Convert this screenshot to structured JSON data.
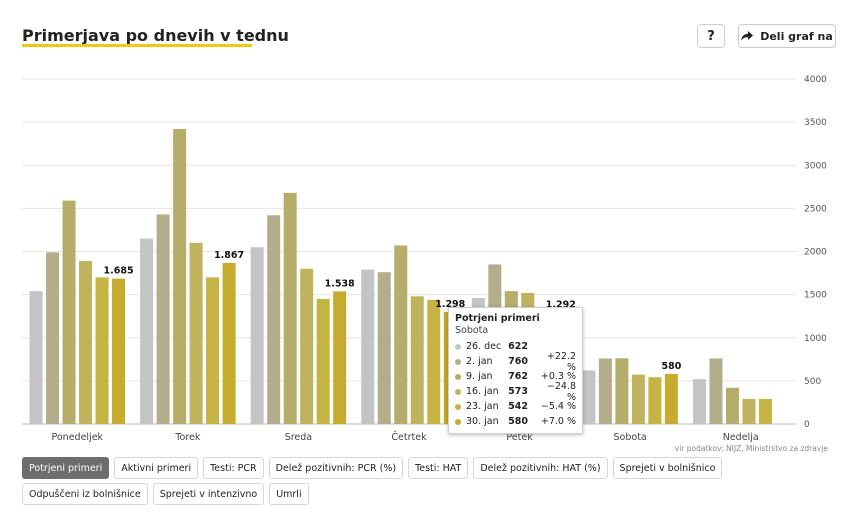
{
  "header": {
    "title": "Primerjava po dnevih v tednu",
    "help_label": "?",
    "share_label": "Deli graf na"
  },
  "source": "vir podatkov: NIJZ, Ministrstvo za zdravje",
  "tabs": [
    {
      "label": "Potrjeni primeri",
      "active": true
    },
    {
      "label": "Aktivni primeri",
      "active": false
    },
    {
      "label": "Testi: PCR",
      "active": false
    },
    {
      "label": "Delež pozitivnih: PCR (%)",
      "active": false
    },
    {
      "label": "Testi: HAT",
      "active": false
    },
    {
      "label": "Delež pozitivnih: HAT (%)",
      "active": false
    },
    {
      "label": "Sprejeti v bolnišnico",
      "active": false
    },
    {
      "label": "Odpuščeni iz bolnišnice",
      "active": false
    },
    {
      "label": "Sprejeti v intenzivno",
      "active": false
    },
    {
      "label": "Umrli",
      "active": false
    }
  ],
  "tooltip": {
    "title": "Potrjeni primeri",
    "day": "Sobota",
    "rows": [
      {
        "week": "26. dec",
        "value": "622",
        "change": ""
      },
      {
        "week": "2. jan",
        "value": "760",
        "change": "+22.2 %"
      },
      {
        "week": "9. jan",
        "value": "762",
        "change": "+0.3 %"
      },
      {
        "week": "16. jan",
        "value": "573",
        "change": "−24.8 %"
      },
      {
        "week": "23. jan",
        "value": "542",
        "change": "−5.4 %"
      },
      {
        "week": "30. jan",
        "value": "580",
        "change": "+7.0 %"
      }
    ]
  },
  "chart_data": {
    "type": "bar",
    "categories": [
      "Ponedeljek",
      "Torek",
      "Sreda",
      "Četrtek",
      "Petek",
      "Sobota",
      "Nedelja"
    ],
    "series": [
      {
        "name": "26. dec",
        "color": "#c4c4c4",
        "values": [
          1540,
          2150,
          2050,
          1790,
          1460,
          622,
          520
        ]
      },
      {
        "name": "2. jan",
        "color": "#b3ad8b",
        "values": [
          1990,
          2430,
          2420,
          1760,
          1850,
          760,
          760
        ]
      },
      {
        "name": "9. jan",
        "color": "#b7ad6a",
        "values": [
          2590,
          3420,
          2680,
          2070,
          1540,
          762,
          420
        ]
      },
      {
        "name": "16. jan",
        "color": "#c1b35e",
        "values": [
          1890,
          2100,
          1800,
          1480,
          1520,
          573,
          290
        ]
      },
      {
        "name": "23. jan",
        "color": "#c5b344",
        "values": [
          1700,
          1700,
          1450,
          1440,
          1290,
          542,
          290
        ]
      },
      {
        "name": "30. jan",
        "color": "#c6ab2e",
        "values": [
          1685,
          1867,
          1538,
          1298,
          1292,
          580,
          null
        ]
      }
    ],
    "data_labels": [
      "1.685",
      "1.867",
      "1.538",
      "1.298",
      "1.292",
      "580",
      ""
    ],
    "yticks": [
      0,
      500,
      1000,
      1500,
      2000,
      2500,
      3000,
      3500,
      4000
    ],
    "ylim": [
      0,
      4000
    ],
    "grid": true,
    "y_axis_side": "right"
  }
}
